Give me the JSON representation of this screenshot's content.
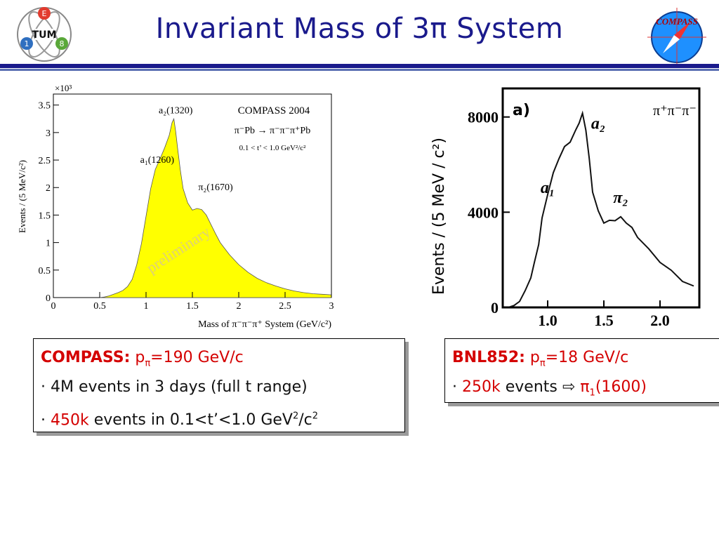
{
  "slide": {
    "title": "Invariant Mass of 3π System",
    "logo_left": {
      "letters": [
        "E",
        "TUM",
        "1",
        "8"
      ]
    },
    "logo_right": {
      "label": "COMPASS"
    }
  },
  "compass_box": {
    "label": "COMPASS:",
    "beam": "p",
    "beam_sub": "π",
    "beam_value": "=190 GeV/c",
    "bullet": "·",
    "line2": "4M events in 3 days (full t range)",
    "line3_red": "450k",
    "line3_rest": "events in 0.1<t’<1.0 GeV",
    "line3_sup1": "2",
    "line3_unit": "/c",
    "line3_sup2": "2"
  },
  "bnl_box": {
    "label": "BNL852:",
    "beam": "p",
    "beam_sub": "π",
    "beam_value": "=18 GeV/c",
    "bullet": "·",
    "events": "250k",
    "events_word": "events",
    "arrow": "⇨",
    "state": "π",
    "state_sub": "1",
    "state_mass": "(1600)"
  },
  "chart_data": [
    {
      "type": "area",
      "title": "COMPASS 2004",
      "reaction": "π⁻Pb → π⁻π⁻π⁺Pb",
      "t_cut": "0.1 < t’ < 1.0 GeV²/c²",
      "watermark": "preliminary",
      "xlabel": "Mass of π⁻π⁻π⁺ System (GeV/c²)",
      "ylabel": "Events / (5 MeV/c²)",
      "yexponent": "×10³",
      "xlim": [
        0,
        3
      ],
      "ylim": [
        0,
        3.7
      ],
      "xticks": [
        "0",
        "0.5",
        "1",
        "1.5",
        "2",
        "2.5",
        "3"
      ],
      "yticks": [
        "0",
        "0.5",
        "1",
        "1.5",
        "2",
        "2.5",
        "3",
        "3.5"
      ],
      "annotations": [
        {
          "text": "a₂(1320)",
          "x": 1.32,
          "y": 3.35
        },
        {
          "text": "a₁(1260)",
          "x": 1.12,
          "y": 2.45
        },
        {
          "text": "π₂(1670)",
          "x": 1.75,
          "y": 1.95
        }
      ],
      "grid": false,
      "fill_color": "#ffff00",
      "x": [
        0.5,
        0.55,
        0.6,
        0.65,
        0.7,
        0.75,
        0.8,
        0.85,
        0.9,
        0.95,
        1.0,
        1.05,
        1.1,
        1.15,
        1.2,
        1.25,
        1.28,
        1.3,
        1.32,
        1.34,
        1.37,
        1.4,
        1.45,
        1.5,
        1.55,
        1.6,
        1.65,
        1.7,
        1.75,
        1.8,
        1.85,
        1.9,
        2.0,
        2.1,
        2.2,
        2.3,
        2.4,
        2.5,
        2.6,
        2.7,
        2.8,
        2.9,
        3.0
      ],
      "y": [
        0.0,
        0.01,
        0.03,
        0.06,
        0.09,
        0.13,
        0.2,
        0.33,
        0.6,
        0.98,
        1.48,
        1.98,
        2.33,
        2.52,
        2.72,
        2.95,
        3.18,
        3.25,
        3.02,
        2.72,
        2.32,
        1.98,
        1.72,
        1.59,
        1.62,
        1.6,
        1.5,
        1.33,
        1.16,
        1.0,
        0.89,
        0.78,
        0.6,
        0.46,
        0.35,
        0.27,
        0.21,
        0.16,
        0.12,
        0.09,
        0.07,
        0.06,
        0.05
      ]
    },
    {
      "type": "line",
      "panel_label": "a)",
      "channel": "π⁺π⁻π⁻",
      "ylabel": "Events / (5 MeV / c²)",
      "xlim": [
        0.6,
        2.35
      ],
      "ylim": [
        0,
        9200
      ],
      "xticks": [
        "1.0",
        "1.5",
        "2.0"
      ],
      "yticks": [
        "0",
        "4000",
        "8000"
      ],
      "annotations": [
        {
          "text": "a₂",
          "x": 1.45,
          "y": 7500
        },
        {
          "text": "a₁",
          "x": 1.0,
          "y": 4800
        },
        {
          "text": "π₂",
          "x": 1.65,
          "y": 4400
        }
      ],
      "grid": false,
      "x": [
        0.65,
        0.7,
        0.75,
        0.8,
        0.85,
        0.88,
        0.92,
        0.95,
        1.0,
        1.05,
        1.1,
        1.15,
        1.2,
        1.25,
        1.28,
        1.31,
        1.34,
        1.37,
        1.4,
        1.45,
        1.5,
        1.55,
        1.6,
        1.65,
        1.7,
        1.75,
        1.8,
        1.9,
        2.0,
        2.1,
        2.2,
        2.3
      ],
      "y": [
        0,
        80,
        250,
        650,
        1300,
        1800,
        2700,
        3700,
        4800,
        5600,
        6300,
        6700,
        7000,
        7400,
        7800,
        8100,
        7500,
        6200,
        4900,
        4000,
        3600,
        3600,
        3700,
        3750,
        3600,
        3300,
        3000,
        2400,
        1950,
        1500,
        1150,
        900
      ]
    }
  ]
}
